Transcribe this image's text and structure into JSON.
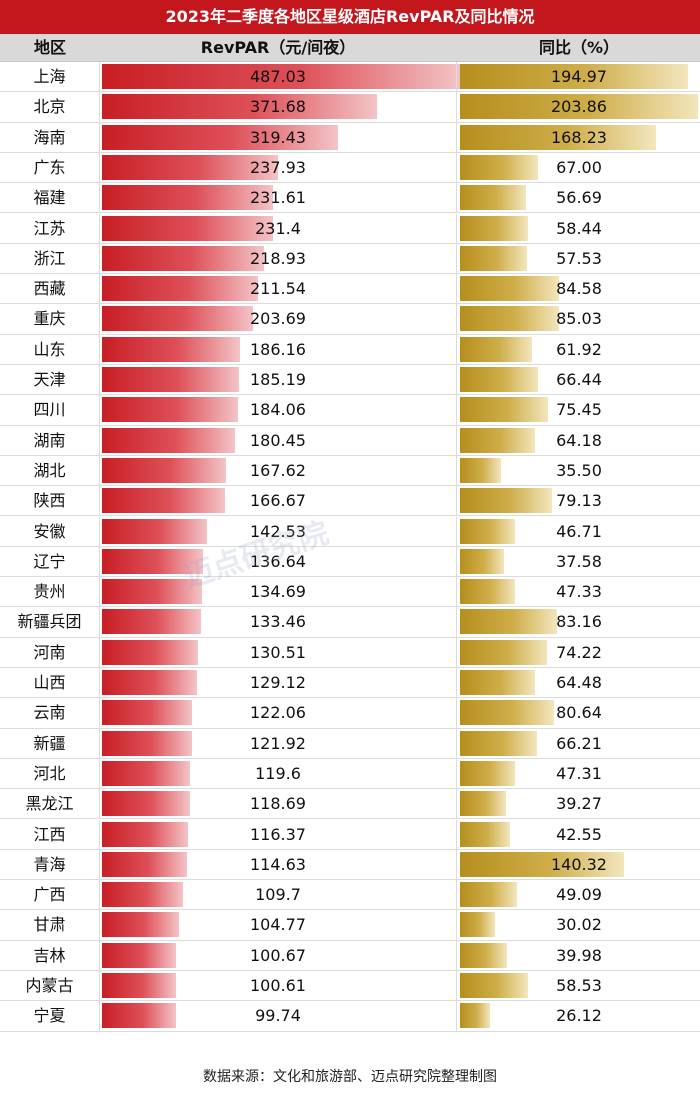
{
  "chart_data": {
    "type": "table",
    "title": "2023年二季度各地区星级酒店RevPAR及同比情况",
    "columns": [
      "地区",
      "RevPAR（元/间夜）",
      "同比（%）"
    ],
    "rows": [
      {
        "region": "上海",
        "revpar": "487.03",
        "yoy": "194.97"
      },
      {
        "region": "北京",
        "revpar": "371.68",
        "yoy": "203.86"
      },
      {
        "region": "海南",
        "revpar": "319.43",
        "yoy": "168.23"
      },
      {
        "region": "广东",
        "revpar": "237.93",
        "yoy": "67.00"
      },
      {
        "region": "福建",
        "revpar": "231.61",
        "yoy": "56.69"
      },
      {
        "region": "江苏",
        "revpar": "231.4",
        "yoy": "58.44"
      },
      {
        "region": "浙江",
        "revpar": "218.93",
        "yoy": "57.53"
      },
      {
        "region": "西藏",
        "revpar": "211.54",
        "yoy": "84.58"
      },
      {
        "region": "重庆",
        "revpar": "203.69",
        "yoy": "85.03"
      },
      {
        "region": "山东",
        "revpar": "186.16",
        "yoy": "61.92"
      },
      {
        "region": "天津",
        "revpar": "185.19",
        "yoy": "66.44"
      },
      {
        "region": "四川",
        "revpar": "184.06",
        "yoy": "75.45"
      },
      {
        "region": "湖南",
        "revpar": "180.45",
        "yoy": "64.18"
      },
      {
        "region": "湖北",
        "revpar": "167.62",
        "yoy": "35.50"
      },
      {
        "region": "陕西",
        "revpar": "166.67",
        "yoy": "79.13"
      },
      {
        "region": "安徽",
        "revpar": "142.53",
        "yoy": "46.71"
      },
      {
        "region": "辽宁",
        "revpar": "136.64",
        "yoy": "37.58"
      },
      {
        "region": "贵州",
        "revpar": "134.69",
        "yoy": "47.33"
      },
      {
        "region": "新疆兵团",
        "revpar": "133.46",
        "yoy": "83.16"
      },
      {
        "region": "河南",
        "revpar": "130.51",
        "yoy": "74.22"
      },
      {
        "region": "山西",
        "revpar": "129.12",
        "yoy": "64.48"
      },
      {
        "region": "云南",
        "revpar": "122.06",
        "yoy": "80.64"
      },
      {
        "region": "新疆",
        "revpar": "121.92",
        "yoy": "66.21"
      },
      {
        "region": "河北",
        "revpar": "119.6",
        "yoy": "47.31"
      },
      {
        "region": "黑龙江",
        "revpar": "118.69",
        "yoy": "39.27"
      },
      {
        "region": "江西",
        "revpar": "116.37",
        "yoy": "42.55"
      },
      {
        "region": "青海",
        "revpar": "114.63",
        "yoy": "140.32"
      },
      {
        "region": "广西",
        "revpar": "109.7",
        "yoy": "49.09"
      },
      {
        "region": "甘肃",
        "revpar": "104.77",
        "yoy": "30.02"
      },
      {
        "region": "吉林",
        "revpar": "100.67",
        "yoy": "39.98"
      },
      {
        "region": "内蒙古",
        "revpar": "100.61",
        "yoy": "58.53"
      },
      {
        "region": "宁夏",
        "revpar": "99.74",
        "yoy": "26.12"
      }
    ],
    "revpar_max": 487.03,
    "yoy_max": 203.86,
    "colors": {
      "title_bg": "#c3161d",
      "revpar_bar": "#c81e25",
      "yoy_bar": "#b58e1d",
      "header_bg": "#d9d9d9"
    }
  },
  "watermark": "迈点研究院",
  "source": "数据来源：文化和旅游部、迈点研究院整理制图"
}
